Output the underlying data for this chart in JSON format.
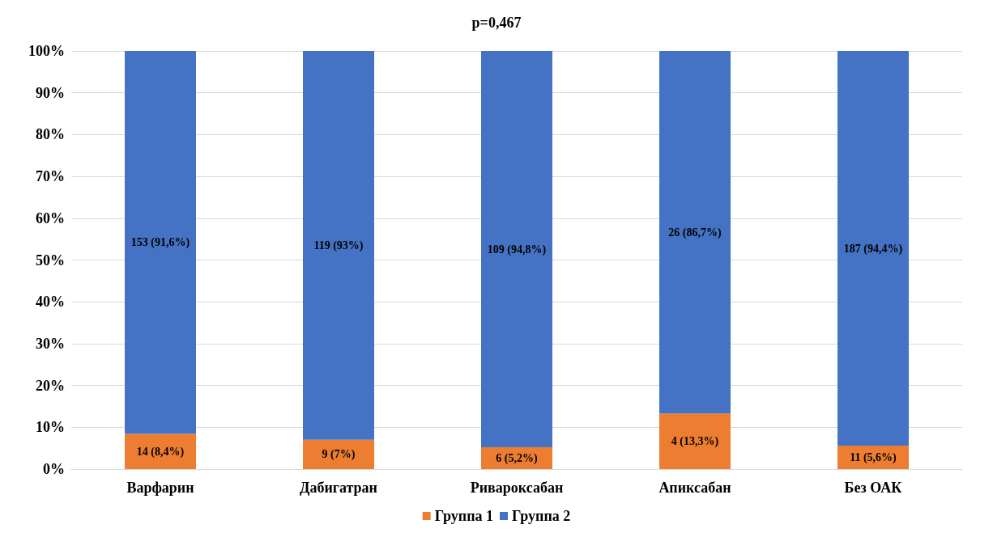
{
  "chart_data": {
    "type": "bar",
    "title": "p=0,467",
    "stacked": true,
    "categories": [
      "Варфарин",
      "Дабигатран",
      "Ривароксабан",
      "Апиксабан",
      "Без ОАК"
    ],
    "series": [
      {
        "name": "Группа 1",
        "color": "#ed7d31",
        "values": [
          8.4,
          7,
          5.2,
          13.3,
          5.6
        ],
        "value_labels": [
          "14 (8,4%)",
          "9 (7%)",
          "6 (5,2%)",
          "4 (13,3%)",
          "11 (5,6%)"
        ]
      },
      {
        "name": "Группа 2",
        "color": "#4472c4",
        "values": [
          91.6,
          93,
          94.8,
          86.7,
          94.4
        ],
        "value_labels": [
          "153 (91,6%)",
          "119 (93%)",
          "109 (94,8%)",
          "26 (86,7%)",
          "187 (94,4%)"
        ]
      }
    ],
    "ylim": [
      0,
      100
    ],
    "yticks": [
      {
        "value": 0,
        "label": "0%"
      },
      {
        "value": 10,
        "label": "10%"
      },
      {
        "value": 20,
        "label": "20%"
      },
      {
        "value": 30,
        "label": "30%"
      },
      {
        "value": 40,
        "label": "40%"
      },
      {
        "value": 50,
        "label": "50%"
      },
      {
        "value": 60,
        "label": "60%"
      },
      {
        "value": 70,
        "label": "70%"
      },
      {
        "value": 80,
        "label": "80%"
      },
      {
        "value": 90,
        "label": "90%"
      },
      {
        "value": 100,
        "label": "100%"
      }
    ],
    "grid": "y",
    "legend": "bottom"
  }
}
